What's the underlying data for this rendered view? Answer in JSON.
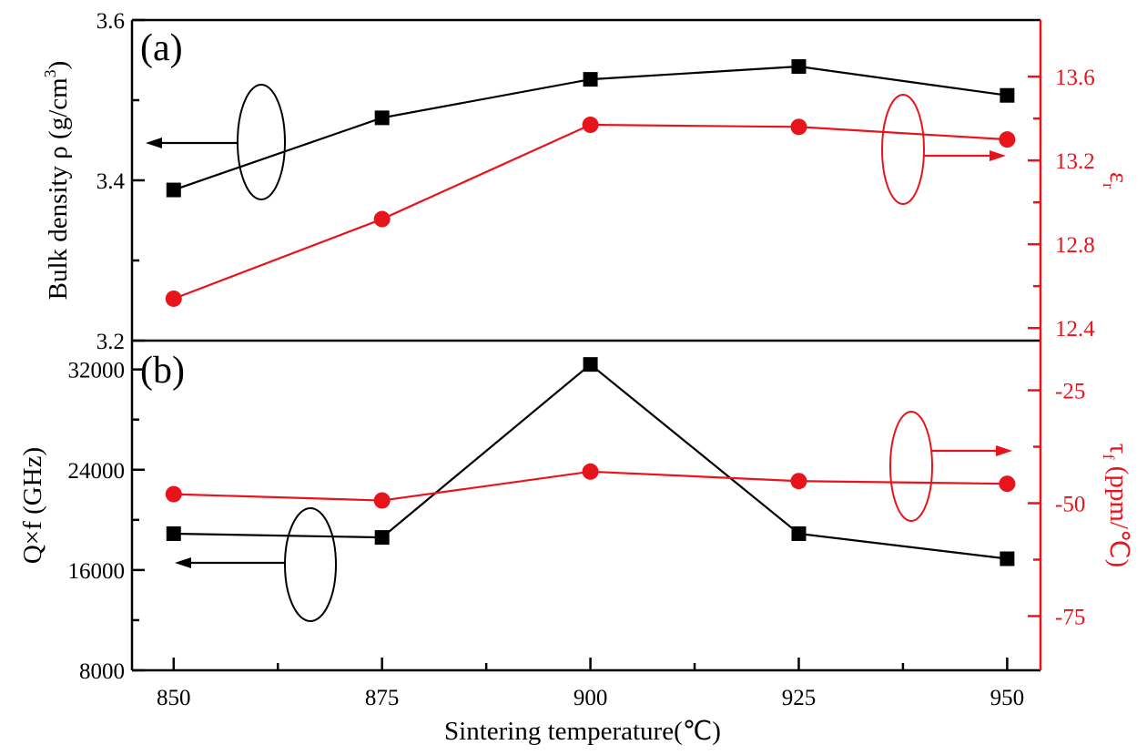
{
  "chart_data": [
    {
      "panel": "(a)",
      "type": "line",
      "x": [
        850,
        875,
        900,
        925,
        950
      ],
      "xlabel": "Sintering temperature(℃)",
      "x_tick_labels": [
        "850",
        "875",
        "900",
        "925",
        "950"
      ],
      "xlim": [
        845,
        954
      ],
      "left_axis": {
        "label_main": "Bulk density ρ (g/cm",
        "label_sup": "3",
        "label_tail": ")",
        "ylim": [
          3.2,
          3.6
        ],
        "ticks": [
          "3.2",
          "3.4",
          "3.6"
        ],
        "minor_ticks": [
          3.3,
          3.5
        ],
        "color": "#000000"
      },
      "right_axis": {
        "label_main": "ε",
        "label_sub": "r",
        "ylim": [
          12.34,
          13.87
        ],
        "ticks": [
          "12.4",
          "12.8",
          "13.2",
          "13.6"
        ],
        "minor_ticks": [
          12.6,
          13.0,
          13.4
        ],
        "color": "#e8141c"
      },
      "series": [
        {
          "name": "Bulk density",
          "axis": "left",
          "marker": "square",
          "color": "#000000",
          "values": [
            3.388,
            3.478,
            3.526,
            3.542,
            3.506
          ]
        },
        {
          "name": "εr",
          "axis": "right",
          "marker": "circle",
          "color": "#e8141c",
          "values": [
            12.54,
            12.92,
            13.37,
            13.36,
            13.3
          ]
        }
      ],
      "annotations": [
        {
          "type": "ellipse-arrow",
          "target_axis": "left",
          "color": "#000000"
        },
        {
          "type": "ellipse-arrow",
          "target_axis": "right",
          "color": "#e8141c"
        }
      ]
    },
    {
      "panel": "(b)",
      "type": "line",
      "x": [
        850,
        875,
        900,
        925,
        950
      ],
      "xlabel": "Sintering temperature(℃)",
      "x_tick_labels": [
        "850",
        "875",
        "900",
        "925",
        "950"
      ],
      "xlim": [
        845,
        954
      ],
      "left_axis": {
        "label_main": "Q×f (GHz)",
        "ylim": [
          8000,
          34300
        ],
        "ticks": [
          "8000",
          "16000",
          "24000",
          "32000"
        ],
        "minor_ticks": [
          12000,
          20000,
          28000
        ],
        "color": "#000000"
      },
      "right_axis": {
        "label_main": "τ",
        "label_sub": "f",
        "label_tail": " (ppm/℃)",
        "ylim": [
          -87,
          -14
        ],
        "ticks": [
          "-75",
          "-50",
          "-25"
        ],
        "minor_ticks": [
          -62.5,
          -37.5
        ],
        "color": "#e8141c"
      },
      "series": [
        {
          "name": "Q×f",
          "axis": "left",
          "marker": "square",
          "color": "#000000",
          "values": [
            18900,
            18600,
            32400,
            18900,
            16900
          ]
        },
        {
          "name": "τf",
          "axis": "right",
          "marker": "circle",
          "color": "#e8141c",
          "values": [
            -48.0,
            -49.4,
            -43.0,
            -45.1,
            -45.7
          ]
        }
      ],
      "annotations": [
        {
          "type": "ellipse-arrow",
          "target_axis": "left",
          "color": "#000000"
        },
        {
          "type": "ellipse-arrow",
          "target_axis": "right",
          "color": "#e8141c"
        }
      ]
    }
  ]
}
